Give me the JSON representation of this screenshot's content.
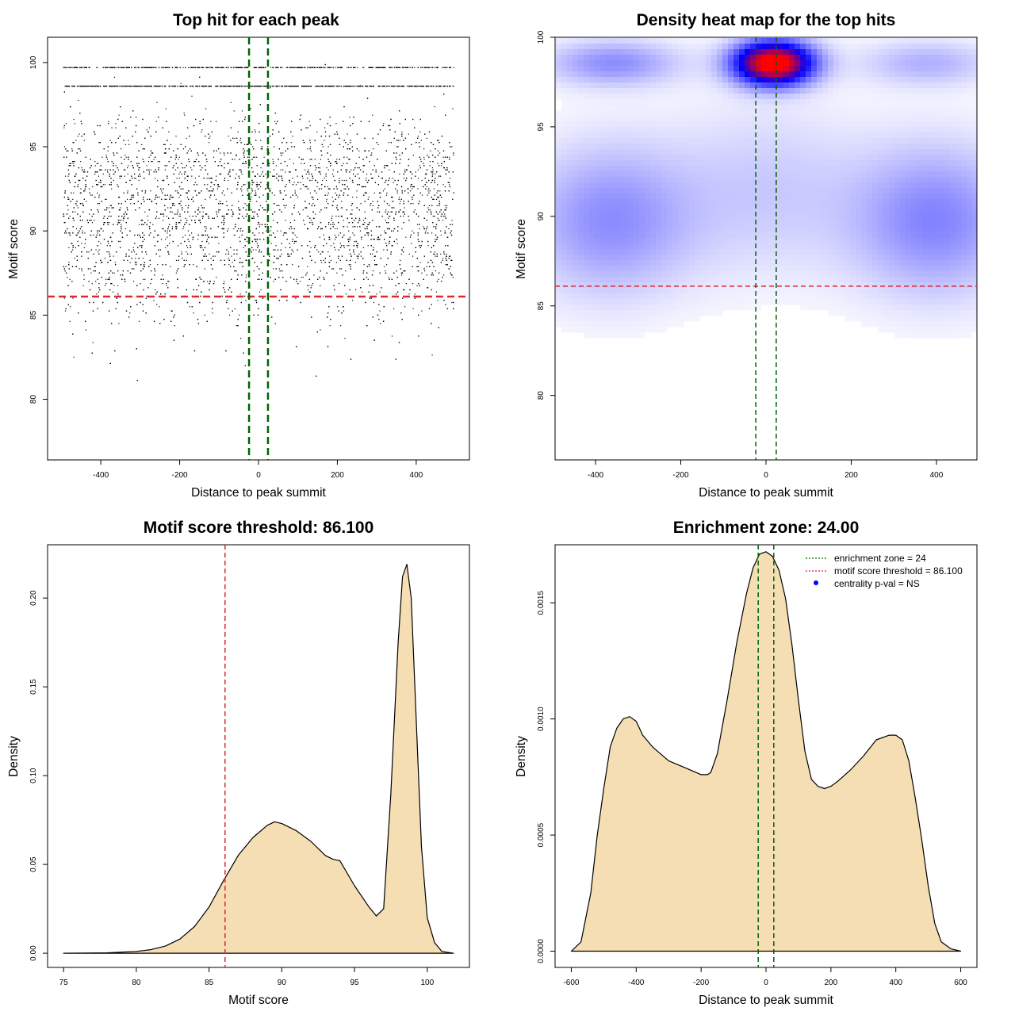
{
  "colors": {
    "threshold": "#e0282e",
    "zone": "#006400",
    "density_fill": "#f5deb3",
    "points": "#000000",
    "legend_marker": "#0000ff"
  },
  "chart_data": [
    {
      "id": "scatter",
      "type": "scatter",
      "title": "Top hit for each peak",
      "xlabel": "Distance to peak summit",
      "ylabel": "Motif score",
      "xlim": [
        -535,
        535
      ],
      "ylim": [
        76.4,
        101.5
      ],
      "xticks": [
        -400,
        -200,
        0,
        200,
        400
      ],
      "yticks": [
        80,
        85,
        90,
        95,
        100
      ],
      "hlines": [
        {
          "y": 86.1,
          "color": "threshold",
          "style": "dashed"
        }
      ],
      "vlines": [
        {
          "x": -24,
          "color": "zone",
          "style": "dashed"
        },
        {
          "x": 24,
          "color": "zone",
          "style": "dashed"
        }
      ],
      "point_distribution": {
        "x_range": [
          -495,
          495
        ],
        "dense_score_lines": [
          99.7,
          98.6
        ],
        "score_mixture": [
          {
            "weight": 0.24,
            "mean": 98.6,
            "sd": 0.35
          },
          {
            "weight": 0.56,
            "mean": 90.0,
            "sd": 2.6
          },
          {
            "weight": 0.2,
            "mean": 93.8,
            "sd": 1.6
          }
        ],
        "score_range": [
          76.5,
          99.9
        ],
        "n_points": 9000
      },
      "grid": false,
      "legend": "none"
    },
    {
      "id": "heatmap",
      "type": "heatmap",
      "title": "Density heat map for the top hits",
      "xlabel": "Distance to peak summit",
      "ylabel": "Motif score",
      "xlim": [
        -495,
        495
      ],
      "ylim": [
        76.4,
        100
      ],
      "xticks": [
        -400,
        -200,
        0,
        200,
        400
      ],
      "yticks": [
        80,
        85,
        90,
        95,
        100
      ],
      "hlines": [
        {
          "y": 86.1,
          "color": "threshold",
          "style": "dashed"
        }
      ],
      "vlines": [
        {
          "x": -24,
          "color": "zone",
          "style": "dashed"
        },
        {
          "x": 24,
          "color": "zone",
          "style": "dashed"
        }
      ],
      "hotspots": [
        {
          "x": 18,
          "y": 98.6,
          "sx": 65,
          "sy": 0.85,
          "intensity": 1.0
        },
        {
          "x": -360,
          "y": 98.6,
          "sx": 110,
          "sy": 0.9,
          "intensity": 0.22
        },
        {
          "x": 380,
          "y": 98.6,
          "sx": 110,
          "sy": 0.9,
          "intensity": 0.15
        },
        {
          "x": -370,
          "y": 89.8,
          "sx": 140,
          "sy": 3.0,
          "intensity": 0.22
        },
        {
          "x": 400,
          "y": 89.8,
          "sx": 140,
          "sy": 3.0,
          "intensity": 0.24
        },
        {
          "x": 0,
          "y": 91.5,
          "sx": 160,
          "sy": 3.5,
          "intensity": 0.1
        }
      ],
      "grid": false,
      "legend": "none"
    },
    {
      "id": "density_score",
      "type": "area",
      "title": "Motif score threshold: 86.100",
      "xlabel": "Motif score",
      "ylabel": "Density",
      "xlim": [
        73.9,
        102.9
      ],
      "ylim": [
        -0.008,
        0.23
      ],
      "xticks": [
        75,
        80,
        85,
        90,
        95,
        100
      ],
      "yticks": [
        0.0,
        0.05,
        0.1,
        0.15,
        0.2
      ],
      "ytick_labels": [
        "0.00",
        "0.05",
        "0.10",
        "0.15",
        "0.20"
      ],
      "x": [
        75,
        78,
        80,
        81,
        82,
        83,
        84,
        85,
        86,
        87,
        88,
        89,
        89.5,
        90,
        91,
        92,
        93,
        93.5,
        94,
        95,
        96,
        96.5,
        97,
        97.5,
        98,
        98.3,
        98.6,
        98.9,
        99.2,
        99.6,
        100,
        100.5,
        101,
        101.8
      ],
      "y": [
        0.0,
        0.0002,
        0.001,
        0.002,
        0.004,
        0.008,
        0.015,
        0.026,
        0.041,
        0.055,
        0.065,
        0.072,
        0.074,
        0.073,
        0.069,
        0.063,
        0.055,
        0.053,
        0.052,
        0.038,
        0.026,
        0.021,
        0.025,
        0.09,
        0.175,
        0.212,
        0.219,
        0.2,
        0.14,
        0.06,
        0.02,
        0.006,
        0.001,
        0.0
      ],
      "vlines": [
        {
          "x": 86.1,
          "color": "threshold",
          "style": "dashed"
        }
      ],
      "grid": false,
      "legend": "none"
    },
    {
      "id": "density_distance",
      "type": "area",
      "title": "Enrichment zone: 24.00",
      "xlabel": "Distance to peak summit",
      "ylabel": "Density",
      "xlim": [
        -650,
        650
      ],
      "ylim": [
        -7e-05,
        0.00175
      ],
      "xticks": [
        -600,
        -400,
        -200,
        0,
        200,
        400,
        600
      ],
      "yticks": [
        0.0,
        0.0005,
        0.001,
        0.0015
      ],
      "ytick_labels": [
        "0.0000",
        "0.0005",
        "0.0010",
        "0.0015"
      ],
      "x": [
        -600,
        -570,
        -540,
        -520,
        -500,
        -480,
        -460,
        -440,
        -420,
        -400,
        -380,
        -350,
        -300,
        -250,
        -200,
        -180,
        -170,
        -150,
        -120,
        -90,
        -60,
        -40,
        -20,
        0,
        20,
        40,
        60,
        80,
        100,
        120,
        140,
        160,
        180,
        200,
        220,
        260,
        300,
        340,
        380,
        400,
        420,
        440,
        460,
        480,
        500,
        520,
        540,
        570,
        600
      ],
      "y": [
        0.0,
        4e-05,
        0.00025,
        0.0005,
        0.0007,
        0.00088,
        0.00096,
        0.001,
        0.00101,
        0.00099,
        0.00093,
        0.00088,
        0.00082,
        0.00079,
        0.00076,
        0.00076,
        0.00077,
        0.00085,
        0.00108,
        0.00133,
        0.00154,
        0.00165,
        0.00171,
        0.00172,
        0.0017,
        0.00164,
        0.00152,
        0.00132,
        0.00108,
        0.00086,
        0.00074,
        0.00071,
        0.0007,
        0.00071,
        0.00073,
        0.00078,
        0.00084,
        0.00091,
        0.00093,
        0.00093,
        0.00091,
        0.00082,
        0.00066,
        0.00048,
        0.00028,
        0.00012,
        4e-05,
        1e-05,
        0.0
      ],
      "vlines": [
        {
          "x": -24,
          "color": "zone",
          "style": "dashed"
        },
        {
          "x": 24,
          "color": "zone",
          "style": "dashed"
        }
      ],
      "legend_position": "top-right",
      "legend_items": [
        {
          "label": "enrichment zone = 24",
          "kind": "dotted",
          "color": "zone"
        },
        {
          "label": "motif score threshold = 86.100",
          "kind": "dotted",
          "color": "threshold"
        },
        {
          "label": "centrality p-val = NS",
          "kind": "point",
          "color": "legend_marker"
        }
      ],
      "grid": false
    }
  ]
}
